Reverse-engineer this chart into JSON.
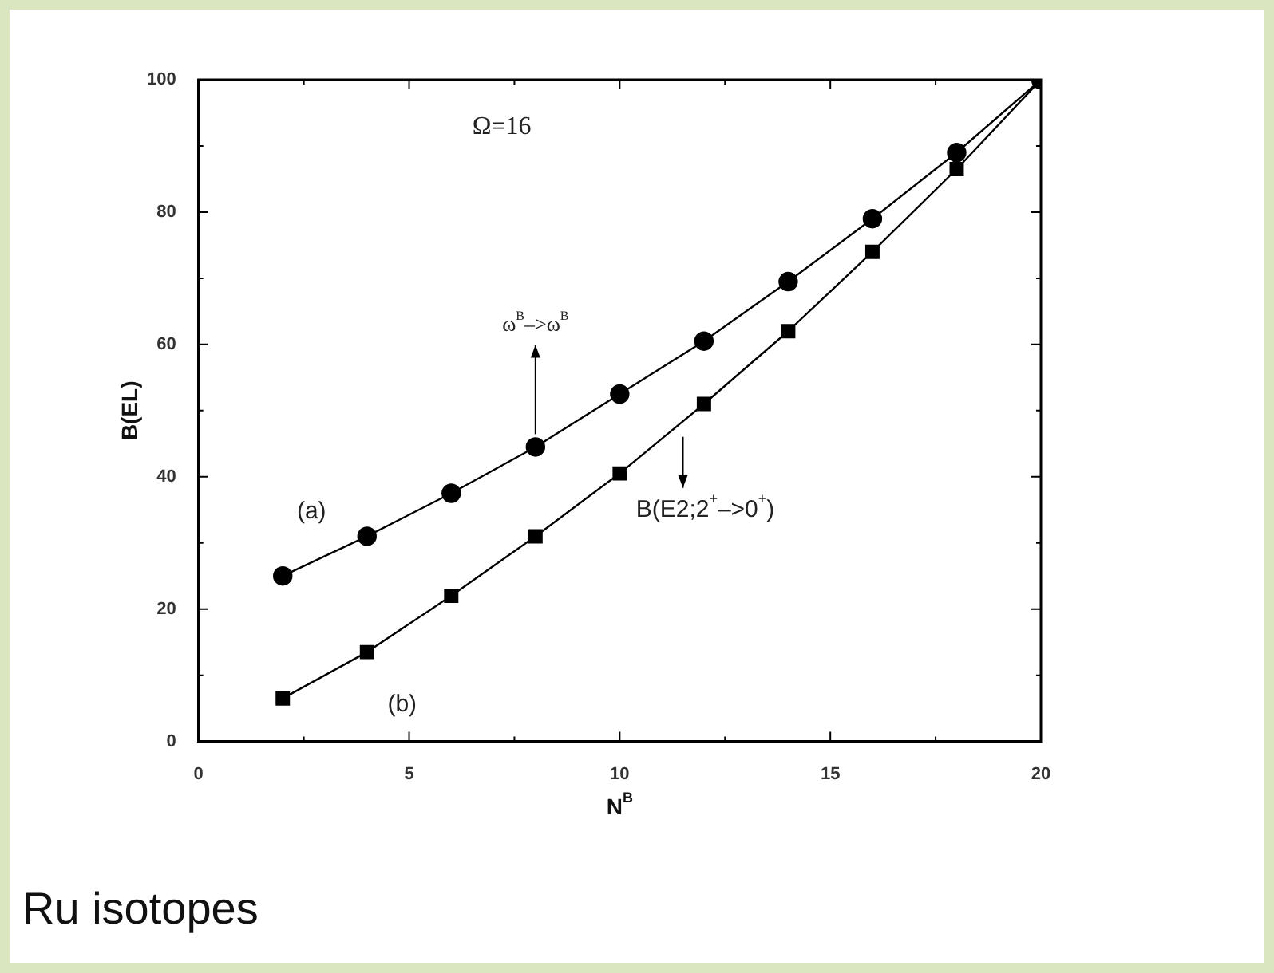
{
  "chart_data": {
    "type": "line",
    "xlabel": "N$^{B}$",
    "ylabel": "B(EL)",
    "x": [
      2,
      4,
      6,
      8,
      10,
      12,
      14,
      16,
      18,
      20
    ],
    "series": [
      {
        "color": "#000000",
        "marker": "circle",
        "values": [
          25,
          31,
          37.5,
          44.5,
          52.5,
          60.5,
          69.5,
          79,
          89,
          100
        ]
      },
      {
        "color": "#000000",
        "marker": "square",
        "values": [
          6.5,
          13.5,
          22,
          31,
          40.5,
          51,
          62,
          74,
          86.5,
          100
        ]
      }
    ],
    "xlim": [
      0,
      20
    ],
    "xticks": [
      0,
      {
        "value": 2.5,
        "label": null
      },
      5,
      {
        "value": 7.5,
        "label": null
      },
      10,
      {
        "value": 12.5,
        "label": null
      },
      15,
      {
        "value": 17.5,
        "label": null
      },
      20
    ],
    "ylim": [
      0,
      100
    ],
    "yticks": [
      0,
      {
        "value": 10,
        "label": null
      },
      20,
      {
        "value": 30,
        "label": null
      },
      40,
      {
        "value": 50,
        "label": null
      },
      60,
      {
        "value": 70,
        "label": null
      },
      80,
      {
        "value": 90,
        "label": null
      },
      100
    ],
    "legend": false,
    "annotations": [
      "Ω=16",
      {
        "text": "(a)",
        "x": 2,
        "y": 25
      },
      {
        "text": "(b)",
        "x": 4,
        "y": 13.5
      },
      {
        "text": "ω$^{B}$–>ω$^{B}$",
        "x": 8,
        "y": 44.5
      },
      {
        "text": "B(E2;2$^{+}$–>0$^{+}$)",
        "x": 11.5,
        "y": 47
      },
      "Ru isotopes"
    ]
  }
}
